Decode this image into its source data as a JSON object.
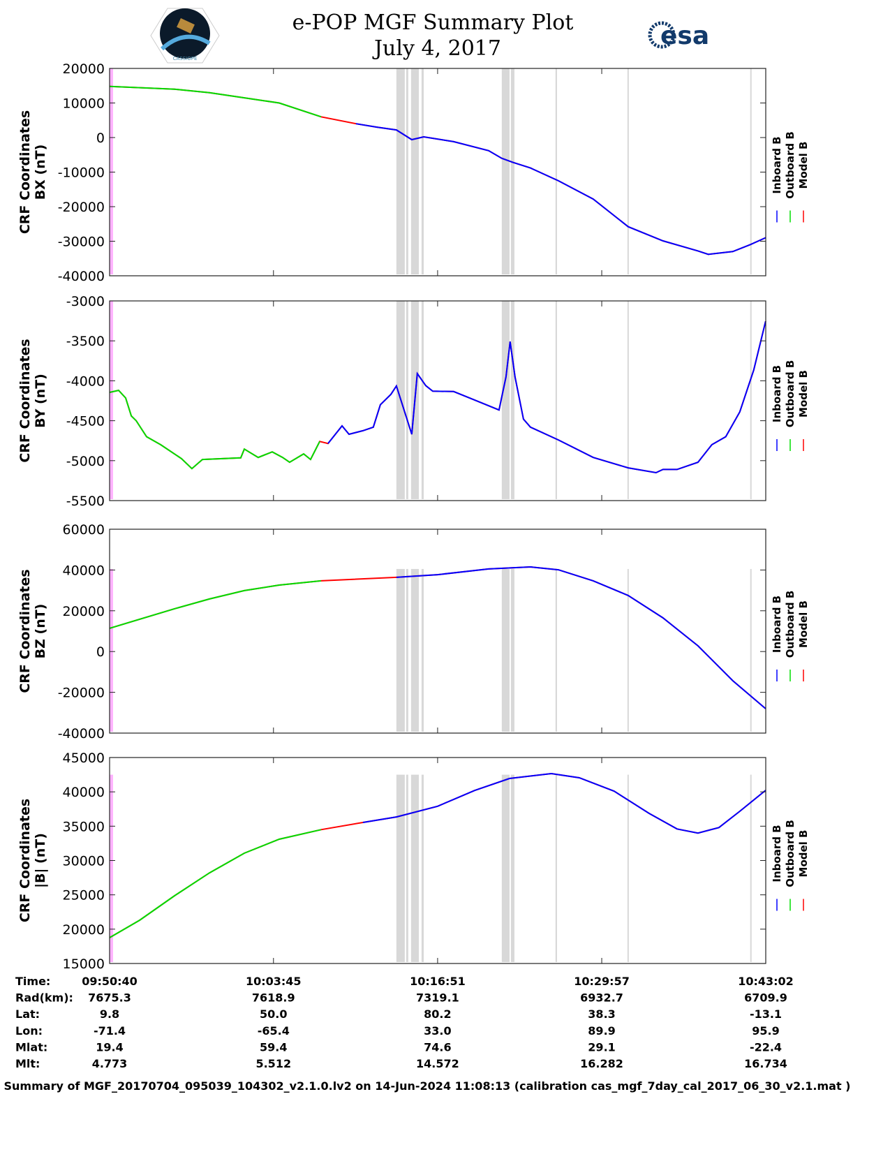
{
  "header": {
    "title": "e-POP MGF Summary Plot",
    "date": "July 4, 2017",
    "logo_left": "e-POP / CASSIOPE mission logo",
    "logo_right_text": "esa"
  },
  "colors": {
    "inboard": "#0000ff",
    "outboard": "#00dd00",
    "model": "#ff0000",
    "gap_band": "#d8d8d8",
    "start_band": "#ffb3ff"
  },
  "chart_data": {
    "type": "line",
    "x_unit": "minutes after 09:50:40",
    "xlim": [
      0,
      52.37
    ],
    "x_ticks": [
      0,
      13.08,
      26.18,
      39.28,
      52.37
    ],
    "outboard_until": 16.9,
    "legend": [
      "Inboard B",
      "Outboard B",
      "Model B"
    ],
    "legend_placement": "right",
    "gap_bands": [
      [
        22.89,
        23.56
      ],
      [
        23.67,
        23.84
      ],
      [
        24.06,
        24.68
      ],
      [
        24.9,
        25.07
      ],
      [
        31.3,
        31.92
      ],
      [
        32.03,
        32.31
      ],
      [
        35.59,
        35.71
      ],
      [
        41.33,
        41.44
      ],
      [
        51.13,
        51.24
      ]
    ],
    "start_band": [
      0,
      0.3
    ],
    "panels": [
      {
        "ylabel1": "CRF Coordinates",
        "ylabel2": "BX (nT)",
        "ylim": [
          -40000,
          20000
        ],
        "yticks": [
          20000,
          10000,
          0,
          -10000,
          -20000,
          -30000,
          -40000
        ],
        "band_top": 20000,
        "x": [
          0,
          5.18,
          7.97,
          10.75,
          13.54,
          16.88,
          19.66,
          21.33,
          22.89,
          24.12,
          25.07,
          27.46,
          30.25,
          31.3,
          32.19,
          33.59,
          35.82,
          38.6,
          41.39,
          44.17,
          46.96,
          47.79,
          49.74,
          51.13,
          52.36
        ],
        "y": [
          14800,
          14000,
          13000,
          11500,
          10000,
          6000,
          4000,
          3000,
          2200,
          -600,
          200,
          -1200,
          -3800,
          -6000,
          -7200,
          -8800,
          -12500,
          -17800,
          -25800,
          -29900,
          -32800,
          -33800,
          -33000,
          -31000,
          -29000
        ]
      },
      {
        "ylabel1": "CRF Coordinates",
        "ylabel2": "BY (nT)",
        "ylim": [
          -5500,
          -3000
        ],
        "yticks": [
          -3000,
          -3500,
          -4000,
          -4500,
          -5000,
          -5500
        ],
        "band_top": -3000,
        "x": [
          0,
          0.72,
          1.28,
          1.73,
          2.12,
          2.95,
          4.07,
          5.74,
          6.57,
          7.41,
          10.47,
          10.75,
          11.86,
          12.98,
          13.81,
          14.37,
          15.49,
          16.04,
          16.77,
          17.43,
          18.55,
          19.11,
          20.22,
          21.05,
          21.61,
          22.45,
          22.89,
          24.12,
          24.56,
          25.23,
          25.79,
          27.46,
          29.13,
          31.08,
          31.64,
          31.97,
          32.36,
          33.03,
          33.59,
          35.82,
          38.6,
          41.39,
          43.61,
          44.17,
          45.29,
          46.96,
          48.07,
          49.18,
          50.3,
          51.41,
          52.36
        ],
        "y": [
          -4145,
          -4120,
          -4215,
          -4440,
          -4500,
          -4700,
          -4800,
          -4975,
          -5100,
          -4985,
          -4965,
          -4855,
          -4960,
          -4890,
          -4960,
          -5020,
          -4915,
          -4985,
          -4760,
          -4785,
          -4565,
          -4670,
          -4625,
          -4580,
          -4300,
          -4170,
          -4065,
          -4670,
          -3910,
          -4060,
          -4130,
          -4135,
          -4240,
          -4365,
          -3950,
          -3510,
          -3950,
          -4480,
          -4580,
          -4740,
          -4960,
          -5090,
          -5150,
          -5110,
          -5110,
          -5020,
          -4800,
          -4700,
          -4390,
          -3865,
          -3255
        ]
      },
      {
        "ylabel1": "CRF Coordinates",
        "ylabel2": "BZ (nT)",
        "ylim": [
          -40000,
          60000
        ],
        "yticks": [
          60000,
          40000,
          20000,
          0,
          -20000,
          -40000
        ],
        "band_top": 40500,
        "x": [
          0,
          5.18,
          7.97,
          10.75,
          13.54,
          16.88,
          22.89,
          26.18,
          30.25,
          33.59,
          35.82,
          38.6,
          41.39,
          44.17,
          46.96,
          49.74,
          52.36
        ],
        "y": [
          11400,
          21000,
          25800,
          29900,
          32600,
          34700,
          36400,
          37700,
          40500,
          41500,
          40100,
          34700,
          27500,
          16500,
          2800,
          -14300,
          -28000
        ]
      },
      {
        "ylabel1": "CRF Coordinates",
        "ylabel2": "|B| (nT)",
        "ylim": [
          15000,
          45000
        ],
        "yticks": [
          45000,
          40000,
          35000,
          30000,
          25000,
          20000,
          15000
        ],
        "band_top": 42500,
        "x": [
          0,
          2.4,
          5.18,
          7.97,
          10.75,
          13.54,
          16.88,
          20.22,
          22.89,
          26.18,
          29.13,
          31.92,
          35.26,
          37.49,
          40.27,
          43.06,
          45.29,
          46.96,
          48.63,
          50.3,
          52.36
        ],
        "y": [
          18760,
          21300,
          24860,
          28200,
          31070,
          33100,
          34500,
          35540,
          36350,
          37900,
          40200,
          41950,
          42660,
          42050,
          40100,
          36860,
          34600,
          34000,
          34800,
          37170,
          40220
        ]
      }
    ]
  },
  "ephemeris": {
    "labels": [
      "Time:",
      "Rad(km):",
      "Lat:",
      "Lon:",
      "Mlat:",
      "Mlt:"
    ],
    "columns": [
      [
        "09:50:40",
        "7675.3",
        "9.8",
        "-71.4",
        "19.4",
        "4.773"
      ],
      [
        "10:03:45",
        "7618.9",
        "50.0",
        "-65.4",
        "59.4",
        "5.512"
      ],
      [
        "10:16:51",
        "7319.1",
        "80.2",
        "33.0",
        "74.6",
        "14.572"
      ],
      [
        "10:29:57",
        "6932.7",
        "38.3",
        "89.9",
        "29.1",
        "16.282"
      ],
      [
        "10:43:02",
        "6709.9",
        "-13.1",
        "95.9",
        "-22.4",
        "16.734"
      ]
    ]
  },
  "footer": "Summary of MGF_20170704_095039_104302_v2.1.0.lv2 on 14-Jun-2024 11:08:13 (calibration cas_mgf_7day_cal_2017_06_30_v2.1.mat )"
}
